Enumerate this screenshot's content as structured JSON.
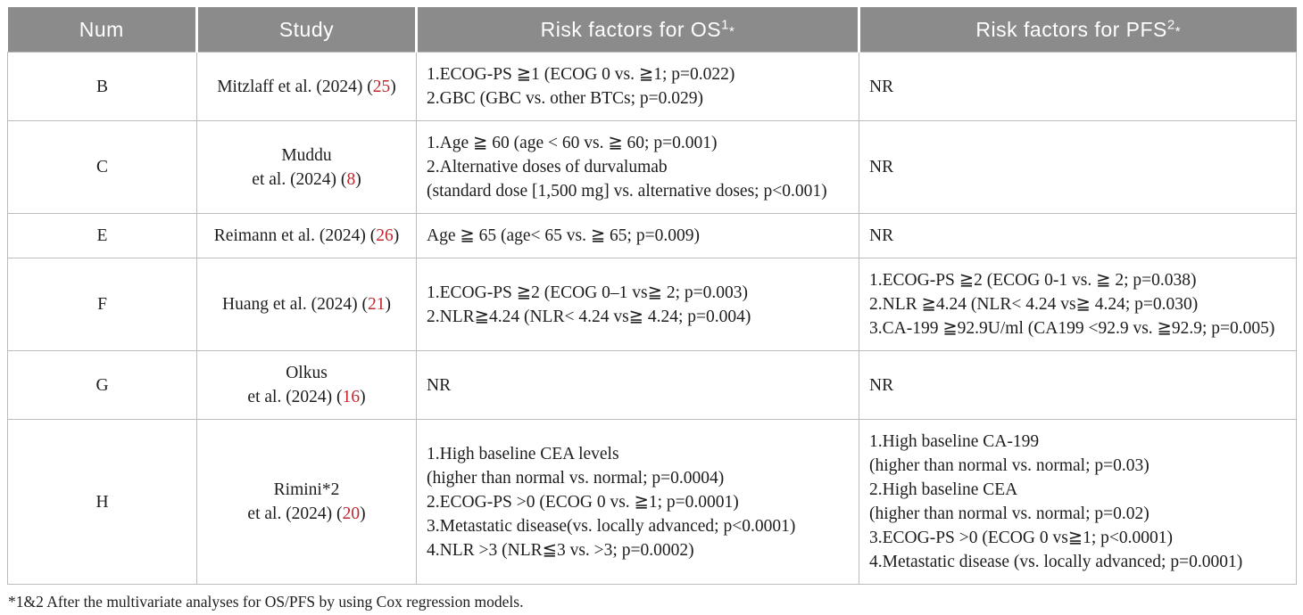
{
  "colors": {
    "header_bg": "#8b8b8b",
    "header_text": "#ffffff",
    "citation_red": "#c1272d",
    "body_text": "#1d1d1d",
    "grid_line": "#bcbcbc"
  },
  "table": {
    "headers": [
      {
        "label": "Num",
        "sup": "",
        "marker": ""
      },
      {
        "label": "Study",
        "sup": "",
        "marker": ""
      },
      {
        "label": "Risk factors for OS",
        "sup": "1",
        "marker": "*"
      },
      {
        "label": "Risk factors for PFS",
        "sup": "2",
        "marker": "*"
      }
    ],
    "rows": [
      {
        "num": "B",
        "study": {
          "lines": [
            "Mitzlaff et al. (2024)"
          ],
          "citation": "25"
        },
        "os": [
          "1.ECOG-PS ≧1 (ECOG 0 vs. ≧1; p=0.022)",
          "2.GBC (GBC vs. other BTCs; p=0.029)"
        ],
        "pfs": [
          "NR"
        ]
      },
      {
        "num": "C",
        "study": {
          "lines": [
            "Muddu",
            "et al. (2024)"
          ],
          "citation": "8"
        },
        "os": [
          "1.Age ≧ 60 (age < 60 vs. ≧ 60; p=0.001)",
          "2.Alternative doses of durvalumab",
          "(standard dose [1,500 mg] vs. alternative doses; p<0.001)"
        ],
        "pfs": [
          "NR"
        ]
      },
      {
        "num": "E",
        "study": {
          "lines": [
            "Reimann et al. (2024)"
          ],
          "citation": "26"
        },
        "os": [
          "Age ≧ 65 (age< 65 vs. ≧ 65; p=0.009)"
        ],
        "pfs": [
          "NR"
        ]
      },
      {
        "num": "F",
        "study": {
          "lines": [
            "Huang et al. (2024)"
          ],
          "citation": "21"
        },
        "os": [
          "1.ECOG-PS ≧2 (ECOG 0–1 vs≧ 2; p=0.003)",
          "2.NLR≧4.24 (NLR< 4.24 vs≧ 4.24; p=0.004)"
        ],
        "pfs": [
          "1.ECOG-PS ≧2 (ECOG 0-1 vs. ≧ 2; p=0.038)",
          "2.NLR ≧4.24 (NLR< 4.24 vs≧ 4.24; p=0.030)",
          "3.CA-199 ≧92.9U/ml (CA199 <92.9 vs. ≧92.9; p=0.005)"
        ]
      },
      {
        "num": "G",
        "study": {
          "lines": [
            "Olkus",
            "et al. (2024)"
          ],
          "citation": "16"
        },
        "os": [
          "NR"
        ],
        "pfs": [
          "NR"
        ]
      },
      {
        "num": "H",
        "study": {
          "lines": [
            "Rimini*2",
            "et al. (2024)"
          ],
          "citation": "20"
        },
        "os": [
          "1.High baseline CEA levels",
          "(higher than normal vs. normal; p=0.0004)",
          "2.ECOG-PS >0 (ECOG 0 vs. ≧1; p=0.0001)",
          "3.Metastatic disease(vs. locally advanced; p<0.0001)",
          "4.NLR >3 (NLR≦3 vs. >3; p=0.0002)"
        ],
        "pfs": [
          "1.High baseline CA-199",
          "(higher than normal vs. normal; p=0.03)",
          "2.High baseline CEA",
          "(higher than normal vs. normal; p=0.02)",
          "3.ECOG-PS >0 (ECOG 0 vs≧1; p<0.0001)",
          "4.Metastatic disease (vs. locally advanced; p=0.0001)"
        ]
      }
    ]
  },
  "footnote": "*1&2 After the multivariate analyses for OS/PFS by using Cox regression models."
}
